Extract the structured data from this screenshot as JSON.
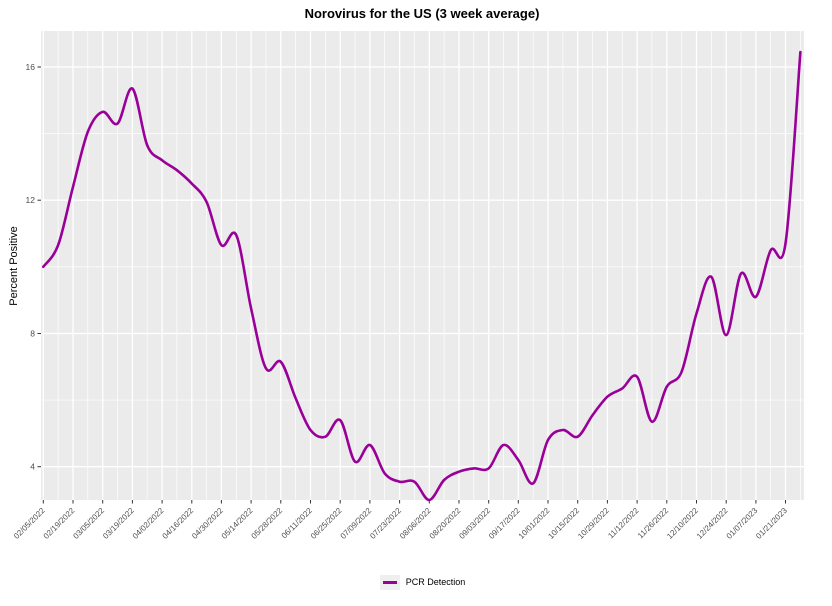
{
  "chart_data": {
    "type": "line",
    "title": "Norovirus for the US (3 week average)",
    "xlabel": "",
    "ylabel": "Percent Positive",
    "legend_position": "bottom",
    "panel_bg": "#EBEBEB",
    "grid_color": "#FFFFFF",
    "tick_text_color": "#4D4D4D",
    "x": [
      "02/05/2022",
      "02/12/2022",
      "02/19/2022",
      "02/26/2022",
      "03/05/2022",
      "03/12/2022",
      "03/19/2022",
      "03/26/2022",
      "04/02/2022",
      "04/09/2022",
      "04/16/2022",
      "04/23/2022",
      "04/30/2022",
      "05/07/2022",
      "05/14/2022",
      "05/21/2022",
      "05/28/2022",
      "06/04/2022",
      "06/11/2022",
      "06/18/2022",
      "06/25/2022",
      "07/02/2022",
      "07/09/2022",
      "07/16/2022",
      "07/23/2022",
      "07/30/2022",
      "08/06/2022",
      "08/13/2022",
      "08/20/2022",
      "08/27/2022",
      "09/03/2022",
      "09/10/2022",
      "09/17/2022",
      "09/24/2022",
      "10/01/2022",
      "10/08/2022",
      "10/15/2022",
      "10/22/2022",
      "10/29/2022",
      "11/05/2022",
      "11/12/2022",
      "11/19/2022",
      "11/26/2022",
      "12/03/2022",
      "12/10/2022",
      "12/17/2022",
      "12/24/2022",
      "12/31/2022",
      "01/07/2023",
      "01/14/2023",
      "01/21/2023",
      "01/28/2023"
    ],
    "series": [
      {
        "name": "PCR Detection",
        "color": "#990099",
        "values": [
          10.0,
          10.65,
          12.4,
          14.05,
          14.65,
          14.3,
          15.35,
          13.65,
          13.2,
          12.9,
          12.5,
          11.95,
          10.65,
          10.95,
          8.75,
          6.95,
          7.15,
          6.05,
          5.1,
          4.9,
          5.4,
          4.15,
          4.65,
          3.8,
          3.55,
          3.55,
          3.0,
          3.6,
          3.85,
          3.95,
          3.95,
          4.65,
          4.2,
          3.5,
          4.8,
          5.1,
          4.9,
          5.55,
          6.1,
          6.35,
          6.7,
          5.35,
          6.4,
          6.85,
          8.6,
          9.7,
          7.95,
          9.8,
          9.1,
          10.5,
          10.7,
          16.45
        ]
      }
    ],
    "x_tick_labels": [
      "02/05/2022",
      "02/19/2022",
      "03/05/2022",
      "03/19/2022",
      "04/02/2022",
      "04/16/2022",
      "04/30/2022",
      "05/14/2022",
      "05/28/2022",
      "06/11/2022",
      "06/25/2022",
      "07/09/2022",
      "07/23/2022",
      "08/06/2022",
      "08/20/2022",
      "09/03/2022",
      "09/17/2022",
      "10/01/2022",
      "10/15/2022",
      "10/29/2022",
      "11/12/2022",
      "11/26/2022",
      "12/10/2022",
      "12/24/2022",
      "01/07/2023",
      "01/21/2023"
    ],
    "x_tick_every": 2,
    "y_ticks": [
      4,
      8,
      12,
      16
    ],
    "ylim": [
      3.0,
      17.08
    ],
    "grid": "white major+minor on grey panel"
  }
}
